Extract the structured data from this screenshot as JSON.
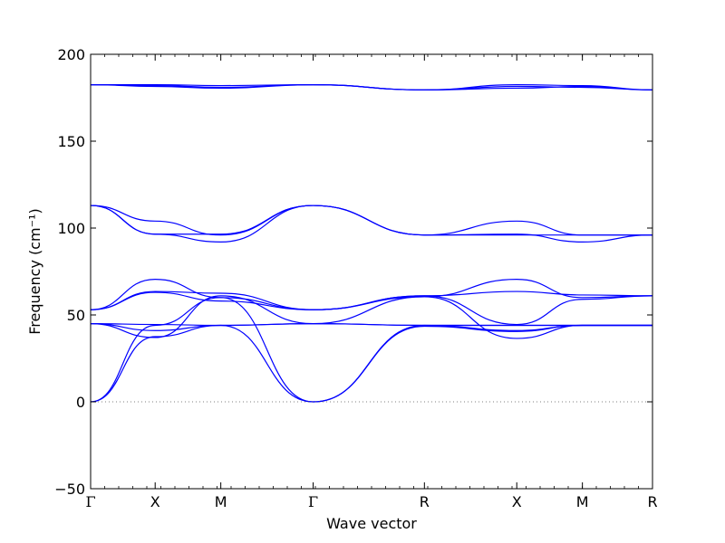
{
  "chart_data": {
    "type": "line",
    "title": "",
    "xlabel": "Wave vector",
    "ylabel": "Frequency (cm⁻¹)",
    "ylim": [
      -50,
      200
    ],
    "yticks": [
      -50,
      0,
      50,
      100,
      150,
      200
    ],
    "xlim": [
      0,
      5.05
    ],
    "high_symmetry_points": [
      {
        "label": "Γ",
        "x": 0
      },
      {
        "label": "X",
        "x": 0.58
      },
      {
        "label": "M",
        "x": 1.17
      },
      {
        "label": "Γ",
        "x": 2.0
      },
      {
        "label": "R",
        "x": 3.0
      },
      {
        "label": "X",
        "x": 3.83
      },
      {
        "label": "M",
        "x": 4.42
      },
      {
        "label": "R",
        "x": 5.05
      }
    ],
    "zero_line": {
      "y": 0,
      "style": "dotted"
    },
    "line_color": "#0000ff",
    "grid": false,
    "legend": "none",
    "series": [
      {
        "x": [
          0,
          0.58,
          1.17,
          2.0,
          3.0,
          3.83,
          4.42,
          5.05
        ],
        "y": [
          182.5,
          181.5,
          180.5,
          182.5,
          179.5,
          180.5,
          181.5,
          179.5
        ]
      },
      {
        "x": [
          0,
          0.58,
          1.17,
          2.0,
          3.0,
          3.83,
          4.42,
          5.05
        ],
        "y": [
          182.5,
          182.5,
          182,
          182.5,
          179.5,
          182.5,
          182,
          179.5
        ]
      },
      {
        "x": [
          0,
          0.58,
          1.17,
          2.0,
          3.0,
          3.83,
          4.42,
          5.05
        ],
        "y": [
          182.5,
          182,
          181,
          182.5,
          179.5,
          181.5,
          181,
          179.5
        ]
      },
      {
        "x": [
          0,
          0.58,
          1.17,
          2.0,
          3.0,
          3.83,
          4.42,
          5.05
        ],
        "y": [
          113,
          104,
          96,
          113,
          96,
          104,
          96,
          96
        ]
      },
      {
        "x": [
          0,
          0.58,
          1.17,
          2.0,
          3.0,
          3.83,
          4.42,
          5.05
        ],
        "y": [
          113,
          96.5,
          92,
          113,
          96,
          96.5,
          92,
          96
        ]
      },
      {
        "x": [
          0,
          0.58,
          1.17,
          2.0,
          3.0,
          3.83,
          4.42,
          5.05
        ],
        "y": [
          113,
          96.5,
          96.5,
          113,
          96,
          96,
          96,
          96
        ]
      },
      {
        "x": [
          0,
          0.58,
          1.17,
          2.0,
          3.0,
          3.83,
          4.42,
          5.05
        ],
        "y": [
          53,
          70.5,
          60,
          53,
          60.5,
          70.5,
          60,
          61
        ]
      },
      {
        "x": [
          0,
          0.58,
          1.17,
          2.0,
          3.0,
          3.83,
          4.42,
          5.05
        ],
        "y": [
          53,
          63.5,
          62.5,
          53,
          61,
          63.5,
          61.5,
          61
        ]
      },
      {
        "x": [
          0,
          0.58,
          1.17,
          2.0,
          3.0,
          3.83,
          4.42,
          5.05
        ],
        "y": [
          53,
          63,
          58,
          53,
          61,
          44.5,
          59,
          61
        ]
      },
      {
        "x": [
          0,
          0.58,
          1.17,
          2.0,
          3.0,
          3.83,
          4.42,
          5.05
        ],
        "y": [
          45,
          44.5,
          44,
          45,
          44,
          44,
          44,
          44
        ]
      },
      {
        "x": [
          0,
          0.58,
          1.17,
          2.0,
          3.0,
          3.83,
          4.42,
          5.05
        ],
        "y": [
          45,
          41,
          44,
          45,
          44,
          41,
          44,
          44
        ]
      },
      {
        "x": [
          0,
          0.58,
          1.17,
          2.0,
          3.0,
          3.83,
          4.42,
          5.05
        ],
        "y": [
          45,
          37,
          61,
          45,
          60.5,
          36.5,
          44,
          44
        ]
      },
      {
        "x": [
          0,
          0.58,
          1.17,
          2.0,
          3.0,
          3.83,
          4.42,
          5.05
        ],
        "y": [
          0,
          44,
          60,
          0,
          44,
          44,
          44,
          44
        ]
      },
      {
        "x": [
          0,
          0.58,
          1.17,
          2.0,
          3.0,
          3.83,
          4.42,
          5.05
        ],
        "y": [
          0,
          37.5,
          44,
          0,
          43.5,
          40.5,
          44,
          44
        ]
      }
    ]
  }
}
